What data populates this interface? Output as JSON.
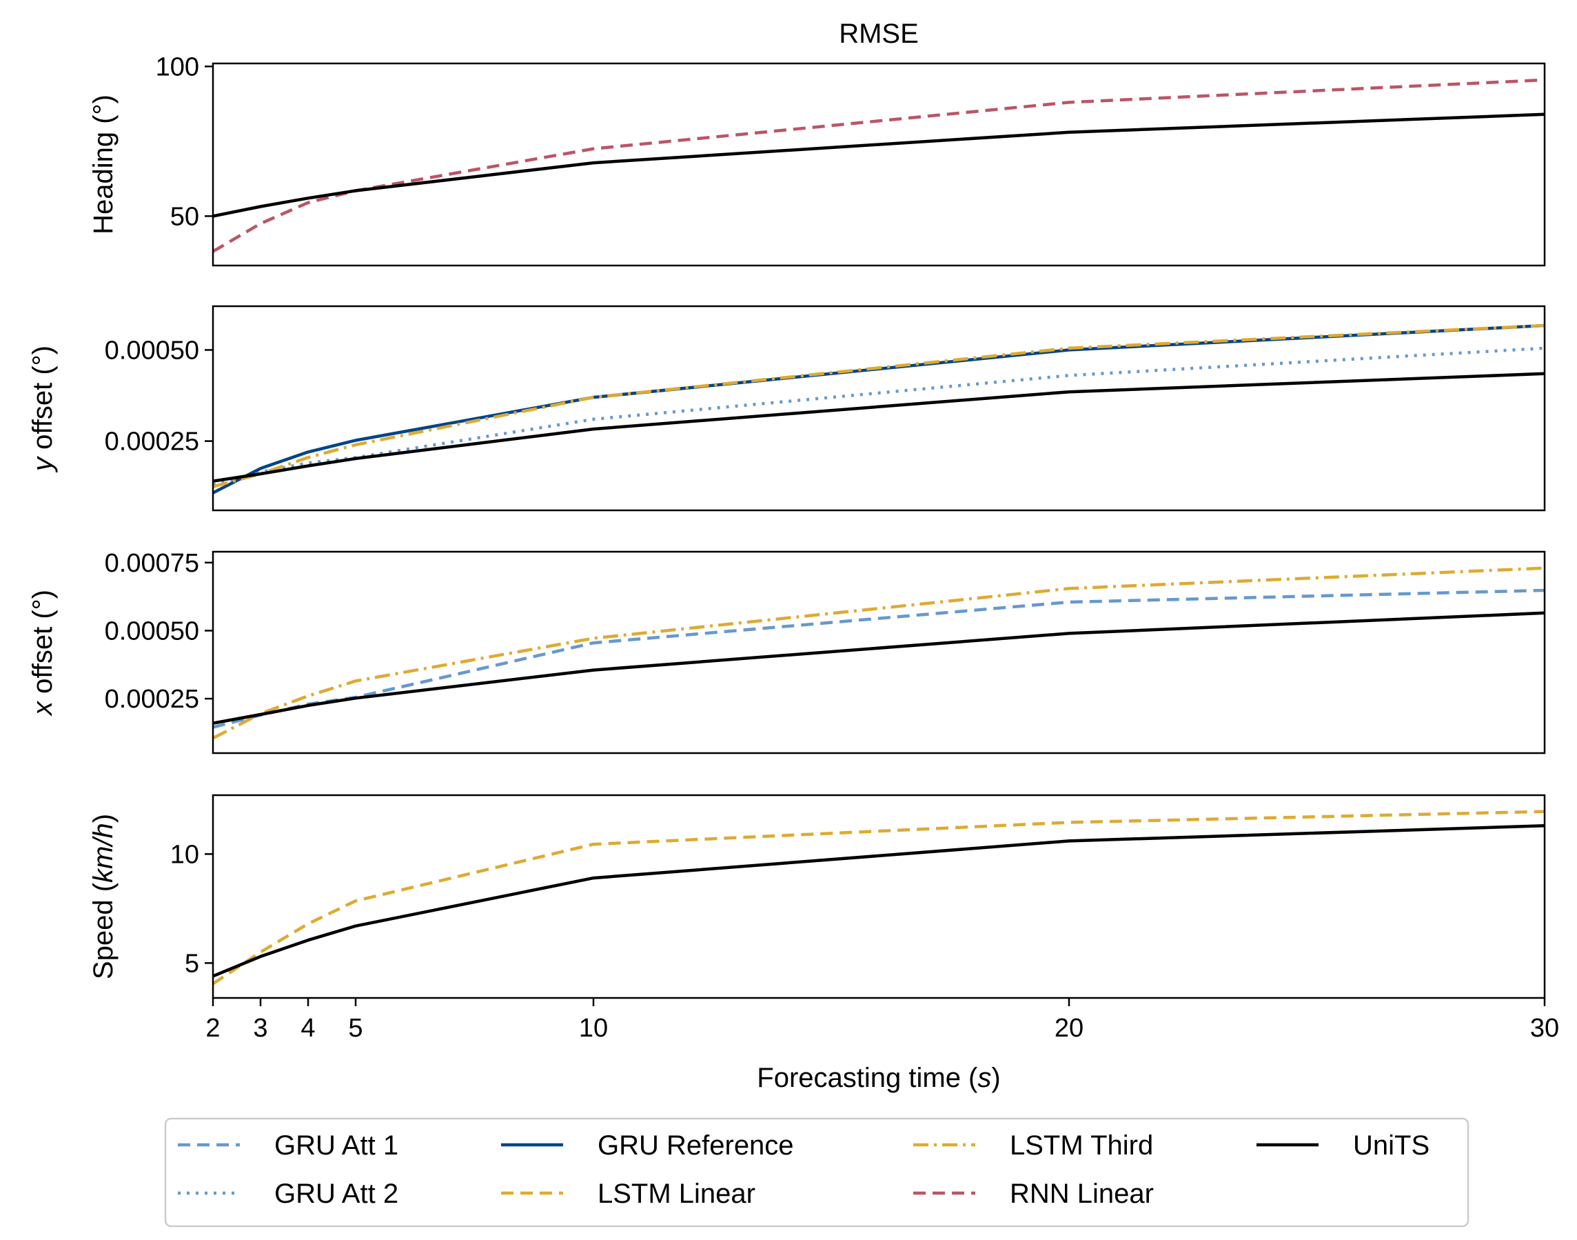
{
  "chart_data": {
    "type": "line",
    "title": "RMSE",
    "xlabel": "Forecasting time (s)",
    "x": [
      2,
      3,
      4,
      5,
      10,
      20,
      30
    ],
    "xticks": [
      "2",
      "3",
      "4",
      "5",
      "10",
      "20",
      "30"
    ],
    "xlim": [
      2,
      30
    ],
    "legend": {
      "placement": "bottom-center",
      "entries": [
        "GRU Att 1",
        "GRU Reference",
        "LSTM Third",
        "UniTS",
        "GRU Att 2",
        "LSTM Linear",
        "RNN Linear"
      ]
    },
    "series_styles": {
      "GRU Att 1": {
        "color": "#6699cc",
        "dash": "18 10"
      },
      "GRU Att 2": {
        "color": "#6699cc",
        "dash": "4 9"
      },
      "GRU Reference": {
        "color": "#004488",
        "dash": ""
      },
      "LSTM Linear": {
        "color": "#ddaa33",
        "dash": "18 10"
      },
      "LSTM Third": {
        "color": "#ddaa33",
        "dash": "22 8 4 8"
      },
      "RNN Linear": {
        "color": "#bb5566",
        "dash": "18 10"
      },
      "UniTS": {
        "color": "#000000",
        "dash": ""
      }
    },
    "subplots": [
      {
        "ylabel": "Heading (°)",
        "ylim": [
          33.5,
          101
        ],
        "yticks": [
          50,
          100
        ],
        "ytick_labels": [
          "50",
          "100"
        ],
        "series": [
          {
            "name": "RNN Linear",
            "values": [
              38.2,
              47.5,
              54.5,
              58.5,
              72.5,
              88,
              95.5
            ]
          },
          {
            "name": "UniTS",
            "values": [
              50,
              53.2,
              56,
              58.5,
              67.8,
              78,
              84
            ]
          }
        ]
      },
      {
        "ylabel": "y offset (°)",
        "ylim": [
          6e-05,
          0.00062
        ],
        "yticks": [
          0.00025,
          0.0005
        ],
        "ytick_labels": [
          "0.00025",
          "0.00050"
        ],
        "series": [
          {
            "name": "GRU Att 2",
            "values": [
              0.00013,
              0.000165,
              0.00019,
              0.000205,
              0.00031,
              0.00043,
              0.000505
            ]
          },
          {
            "name": "GRU Reference",
            "values": [
              0.000108,
              0.000175,
              0.00022,
              0.000252,
              0.00037,
              0.0005,
              0.000567
            ]
          },
          {
            "name": "LSTM Third",
            "values": [
              0.000125,
              0.00016,
              0.000205,
              0.00024,
              0.00037,
              0.000505,
              0.000567
            ]
          },
          {
            "name": "UniTS",
            "values": [
              0.00014,
              0.00016,
              0.000182,
              0.000202,
              0.000283,
              0.000385,
              0.000435
            ]
          }
        ]
      },
      {
        "ylabel": "x offset (°)",
        "ylim": [
          5e-05,
          0.00079
        ],
        "yticks": [
          0.00025,
          0.0005,
          0.00075
        ],
        "ytick_labels": [
          "0.00025",
          "0.00050",
          "0.00075"
        ],
        "series": [
          {
            "name": "GRU Att 1",
            "values": [
              0.000145,
              0.00019,
              0.00023,
              0.000255,
              0.000455,
              0.000605,
              0.000648
            ]
          },
          {
            "name": "LSTM Third",
            "values": [
              0.000105,
              0.000195,
              0.00026,
              0.000315,
              0.000472,
              0.000655,
              0.00073
            ]
          },
          {
            "name": "UniTS",
            "values": [
              0.00016,
              0.000192,
              0.000225,
              0.000252,
              0.000355,
              0.00049,
              0.000565
            ]
          }
        ]
      },
      {
        "ylabel": "Speed (km/h)",
        "ylim": [
          3.4,
          12.7
        ],
        "yticks": [
          5,
          10
        ],
        "ytick_labels": [
          "5",
          "10"
        ],
        "series": [
          {
            "name": "LSTM Linear",
            "values": [
              4.05,
              5.5,
              6.8,
              7.85,
              10.45,
              11.45,
              11.95
            ]
          },
          {
            "name": "UniTS",
            "values": [
              4.4,
              5.3,
              6.05,
              6.7,
              8.9,
              10.6,
              11.3
            ]
          }
        ]
      }
    ]
  }
}
